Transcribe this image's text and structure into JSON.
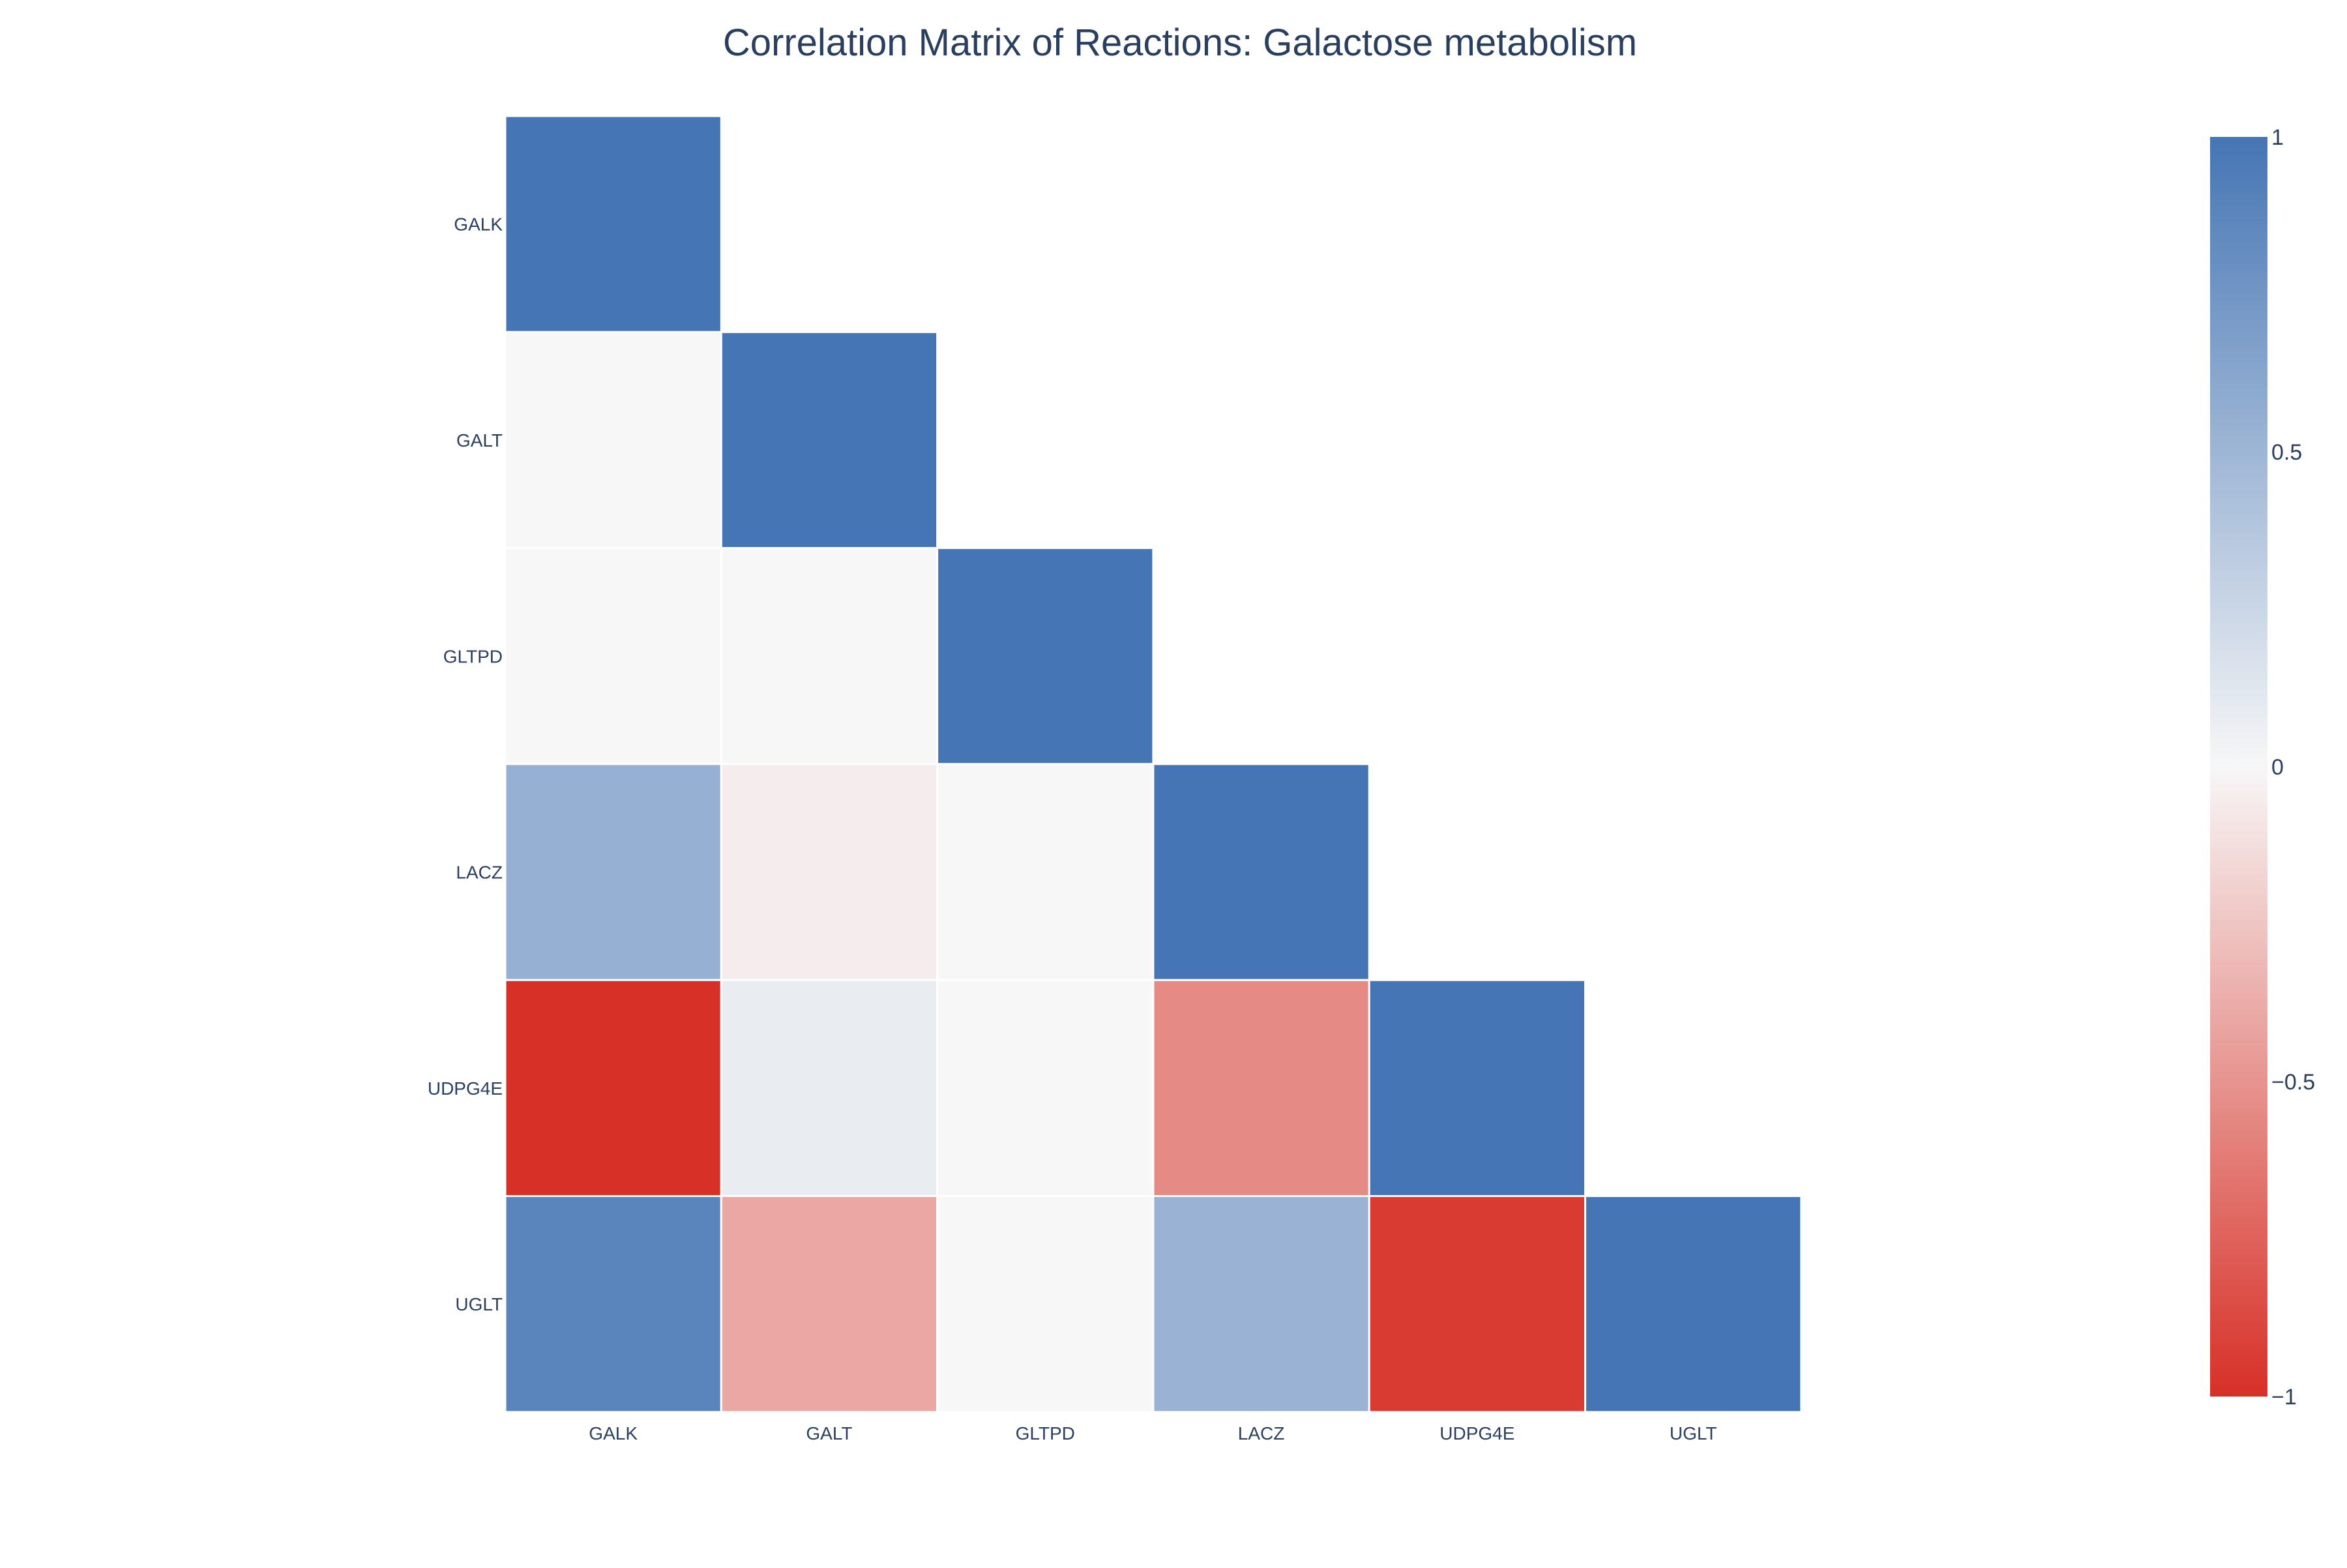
{
  "chart_data": {
    "type": "heatmap",
    "title": "Correlation Matrix of Reactions: Galactose metabolism",
    "x_labels": [
      "GALK",
      "GALT",
      "GLTPD",
      "LACZ",
      "UDPG4E",
      "UGLT"
    ],
    "y_labels": [
      "GALK",
      "GALT",
      "GLTPD",
      "LACZ",
      "UDPG4E",
      "UGLT"
    ],
    "matrix": [
      [
        1.0,
        null,
        null,
        null,
        null,
        null
      ],
      [
        0.0,
        1.0,
        null,
        null,
        null,
        null
      ],
      [
        0.0,
        0.0,
        1.0,
        null,
        null,
        null
      ],
      [
        0.55,
        -0.05,
        0.0,
        1.0,
        null,
        null
      ],
      [
        -1.0,
        0.08,
        0.0,
        -0.55,
        1.0,
        null
      ],
      [
        0.88,
        -0.4,
        0.0,
        0.52,
        -0.95,
        1.0
      ]
    ],
    "zrange": [
      -1,
      1
    ],
    "colorscale": [
      {
        "stop": 0.0,
        "color": "#d73027"
      },
      {
        "stop": 0.5,
        "color": "#f7f7f7"
      },
      {
        "stop": 1.0,
        "color": "#4575b4"
      }
    ],
    "colorbar": {
      "tick_values": [
        1,
        0.5,
        0,
        -0.5,
        -1
      ],
      "tick_labels": [
        "1",
        "0.5",
        "0",
        "−0.5",
        "−1"
      ]
    },
    "grid": false
  }
}
